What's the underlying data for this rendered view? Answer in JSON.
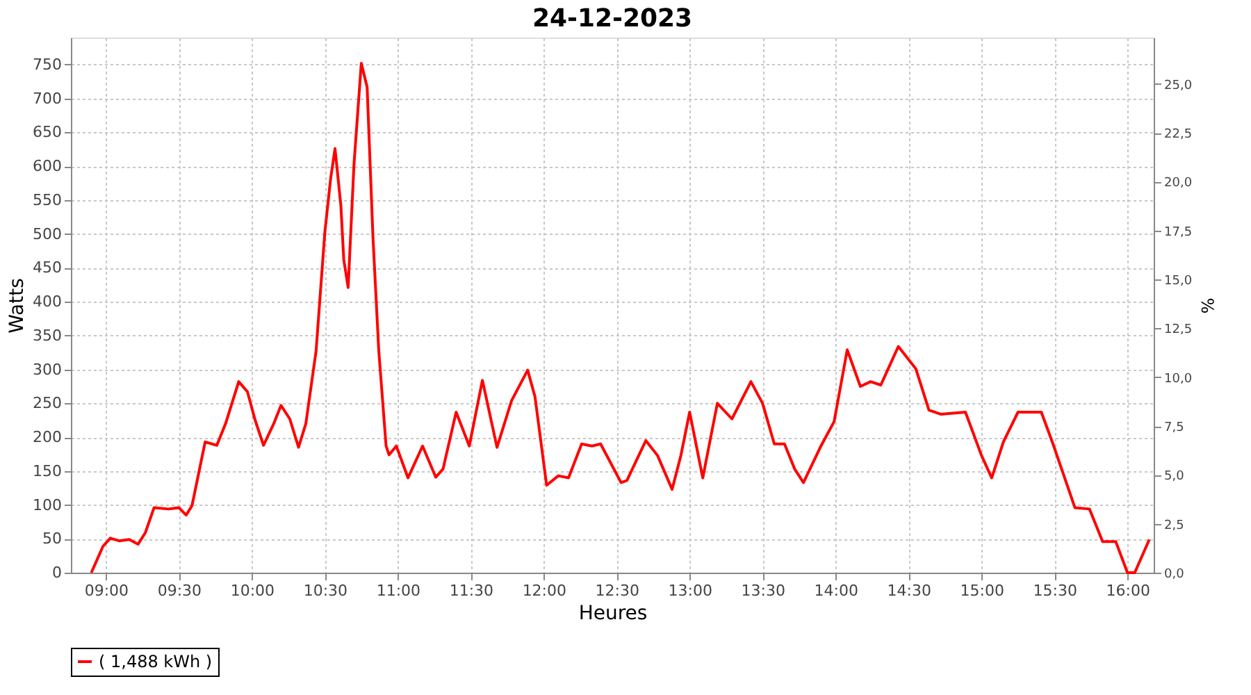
{
  "chart_data": {
    "type": "line",
    "title": "24-12-2023",
    "xlabel": "Heures",
    "ylabel": "Watts",
    "y2label": "%",
    "xlim": [
      8.76,
      16.18
    ],
    "ylim": [
      0,
      790
    ],
    "y2lim": [
      0,
      27.37
    ],
    "xticks": [
      {
        "value": 9,
        "label": "09:00"
      },
      {
        "value": 9.5,
        "label": "09:30"
      },
      {
        "value": 10,
        "label": "10:00"
      },
      {
        "value": 10.5,
        "label": "10:30"
      },
      {
        "value": 11,
        "label": "11:00"
      },
      {
        "value": 11.5,
        "label": "11:30"
      },
      {
        "value": 12,
        "label": "12:00"
      },
      {
        "value": 12.5,
        "label": "12:30"
      },
      {
        "value": 13,
        "label": "13:00"
      },
      {
        "value": 13.5,
        "label": "13:30"
      },
      {
        "value": 14,
        "label": "14:00"
      },
      {
        "value": 14.5,
        "label": "14:30"
      },
      {
        "value": 15,
        "label": "15:00"
      },
      {
        "value": 15.5,
        "label": "15:30"
      },
      {
        "value": 16,
        "label": "16:00"
      }
    ],
    "yticks": [
      0,
      50,
      100,
      150,
      200,
      250,
      300,
      350,
      400,
      450,
      500,
      550,
      600,
      650,
      700,
      750
    ],
    "y2ticks": [
      {
        "value": 0,
        "label": "0,0"
      },
      {
        "value": 2.5,
        "label": "2,5"
      },
      {
        "value": 5,
        "label": "5,0"
      },
      {
        "value": 7.5,
        "label": "7,5"
      },
      {
        "value": 10,
        "label": "10,0"
      },
      {
        "value": 12.5,
        "label": "12,5"
      },
      {
        "value": 15,
        "label": "15,0"
      },
      {
        "value": 17.5,
        "label": "17,5"
      },
      {
        "value": 20,
        "label": "20,0"
      },
      {
        "value": 22.5,
        "label": "22,5"
      },
      {
        "value": 25,
        "label": "25,0"
      }
    ],
    "grid": true,
    "legend": "bottom",
    "marker": "none",
    "line_style": "solid",
    "series": [
      {
        "name": "( 1,488 kWh )",
        "color": "#ff0000",
        "x": [
          8.9,
          8.98,
          9.03,
          9.09,
          9.16,
          9.22,
          9.27,
          9.33,
          9.43,
          9.5,
          9.55,
          9.59,
          9.68,
          9.76,
          9.82,
          9.91,
          9.97,
          10.02,
          10.08,
          10.15,
          10.2,
          10.26,
          10.32,
          10.37,
          10.44,
          10.5,
          10.54,
          10.57,
          10.61,
          10.63,
          10.66,
          10.7,
          10.75,
          10.79,
          10.83,
          10.87,
          10.92,
          10.94,
          10.99,
          11.07,
          11.17,
          11.26,
          11.31,
          11.4,
          11.49,
          11.58,
          11.68,
          11.78,
          11.89,
          11.94,
          12.02,
          12.1,
          12.17,
          12.26,
          12.33,
          12.39,
          12.53,
          12.57,
          12.7,
          12.78,
          12.88,
          12.94,
          13.0,
          13.09,
          13.19,
          13.29,
          13.42,
          13.5,
          13.58,
          13.65,
          13.72,
          13.78,
          13.9,
          13.99,
          14.08,
          14.17,
          14.24,
          14.31,
          14.43,
          14.55,
          14.64,
          14.72,
          14.89,
          15.0,
          15.07,
          15.15,
          15.25,
          15.41,
          15.49,
          15.64,
          15.74,
          15.83,
          15.92,
          16.0,
          16.05,
          16.15
        ],
        "values": [
          0,
          39,
          51,
          47,
          49,
          42,
          59,
          96,
          94,
          96,
          85,
          99,
          193,
          188,
          220,
          282,
          267,
          227,
          188,
          220,
          247,
          227,
          185,
          220,
          327,
          502,
          582,
          626,
          542,
          462,
          421,
          603,
          752,
          717,
          495,
          327,
          187,
          174,
          187,
          140,
          187,
          141,
          153,
          237,
          187,
          284,
          185,
          254,
          299,
          260,
          129,
          143,
          140,
          190,
          187,
          190,
          133,
          136,
          195,
          173,
          123,
          173,
          237,
          140,
          250,
          227,
          282,
          250,
          190,
          190,
          153,
          133,
          187,
          223,
          329,
          275,
          282,
          277,
          334,
          301,
          240,
          234,
          237,
          173,
          140,
          193,
          237,
          237,
          190,
          96,
          94,
          46,
          46,
          0,
          0,
          49
        ]
      }
    ]
  }
}
